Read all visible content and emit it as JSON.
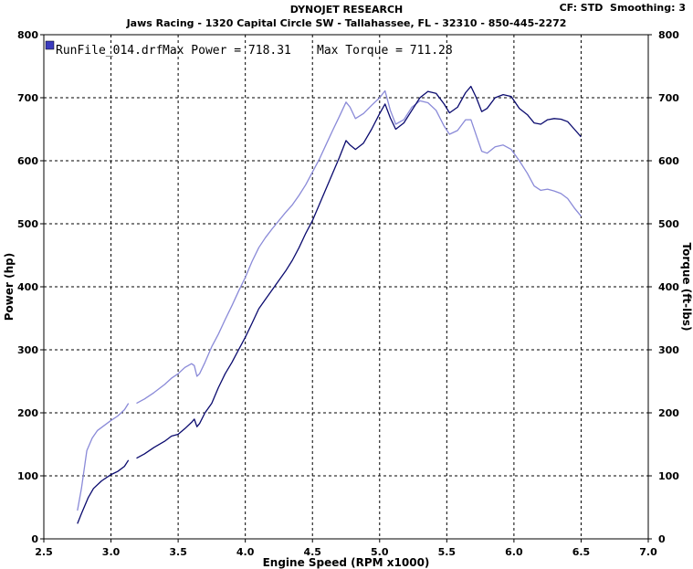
{
  "header": {
    "title": "DYNOJET RESEARCH",
    "subtitle": "Jaws Racing - 1320 Capital Circle SW - Tallahassee, FL - 32310 - 850-445-2272",
    "cf": "CF: STD",
    "smoothing": "Smoothing: 3"
  },
  "chart_data": {
    "type": "line",
    "xlabel": "Engine Speed (RPM x1000)",
    "ylabel": "Power (hp)",
    "y2label": "Torque (ft-lbs)",
    "xlim": [
      2.5,
      7.0
    ],
    "ylim": [
      0,
      800
    ],
    "y2lim": [
      0,
      800
    ],
    "xticks": [
      "2.5",
      "3.0",
      "3.5",
      "4.0",
      "4.5",
      "5.0",
      "5.5",
      "6.0",
      "6.5",
      "7.0"
    ],
    "yticks": [
      "0",
      "100",
      "200",
      "300",
      "400",
      "500",
      "600",
      "700",
      "800"
    ],
    "grid": true,
    "legend": {
      "file": "RunFile_014.drf",
      "max_power": "Max Power = 718.31",
      "max_torque": "Max Torque = 711.28",
      "color": "#3b3bbd",
      "placement": "top-left"
    },
    "series": [
      {
        "role": "power",
        "color": "#0a0a6e",
        "segments": [
          [
            [
              2.75,
              24
            ],
            [
              2.78,
              40
            ],
            [
              2.83,
              65
            ],
            [
              2.87,
              80
            ],
            [
              2.93,
              92
            ],
            [
              3.0,
              102
            ],
            [
              3.05,
              107
            ],
            [
              3.1,
              115
            ],
            [
              3.13,
              125
            ]
          ],
          [
            [
              3.19,
              128
            ],
            [
              3.25,
              135
            ],
            [
              3.32,
              145
            ],
            [
              3.4,
              155
            ],
            [
              3.45,
              163
            ],
            [
              3.5,
              166
            ],
            [
              3.55,
              175
            ],
            [
              3.6,
              185
            ],
            [
              3.62,
              190
            ],
            [
              3.64,
              178
            ],
            [
              3.66,
              183
            ],
            [
              3.7,
              200
            ],
            [
              3.75,
              215
            ],
            [
              3.8,
              240
            ],
            [
              3.85,
              262
            ],
            [
              3.9,
              280
            ],
            [
              3.95,
              300
            ],
            [
              4.0,
              320
            ],
            [
              4.05,
              342
            ],
            [
              4.1,
              365
            ],
            [
              4.15,
              380
            ],
            [
              4.2,
              395
            ],
            [
              4.25,
              410
            ],
            [
              4.3,
              425
            ],
            [
              4.35,
              442
            ],
            [
              4.4,
              462
            ],
            [
              4.45,
              485
            ],
            [
              4.5,
              505
            ],
            [
              4.55,
              530
            ],
            [
              4.6,
              555
            ],
            [
              4.65,
              580
            ],
            [
              4.7,
              605
            ],
            [
              4.75,
              632
            ],
            [
              4.78,
              625
            ],
            [
              4.82,
              618
            ],
            [
              4.88,
              628
            ],
            [
              4.94,
              650
            ],
            [
              5.0,
              675
            ],
            [
              5.04,
              690
            ],
            [
              5.08,
              668
            ],
            [
              5.12,
              650
            ],
            [
              5.18,
              660
            ],
            [
              5.24,
              680
            ],
            [
              5.3,
              700
            ],
            [
              5.36,
              710
            ],
            [
              5.42,
              707
            ],
            [
              5.48,
              690
            ],
            [
              5.52,
              676
            ],
            [
              5.58,
              685
            ],
            [
              5.64,
              708
            ],
            [
              5.68,
              718
            ],
            [
              5.72,
              700
            ],
            [
              5.76,
              678
            ],
            [
              5.8,
              683
            ],
            [
              5.86,
              700
            ],
            [
              5.92,
              705
            ],
            [
              5.98,
              702
            ],
            [
              6.04,
              683
            ],
            [
              6.1,
              673
            ],
            [
              6.15,
              660
            ],
            [
              6.2,
              658
            ],
            [
              6.25,
              665
            ],
            [
              6.3,
              667
            ],
            [
              6.35,
              666
            ],
            [
              6.4,
              662
            ],
            [
              6.45,
              650
            ],
            [
              6.5,
              638
            ]
          ]
        ]
      },
      {
        "role": "torque",
        "color": "#8a8ad8",
        "segments": [
          [
            [
              2.75,
              45
            ],
            [
              2.78,
              80
            ],
            [
              2.82,
              140
            ],
            [
              2.86,
              160
            ],
            [
              2.9,
              172
            ],
            [
              2.95,
              180
            ],
            [
              3.0,
              188
            ],
            [
              3.05,
              195
            ],
            [
              3.1,
              205
            ],
            [
              3.13,
              215
            ]
          ],
          [
            [
              3.19,
              215
            ],
            [
              3.25,
              222
            ],
            [
              3.32,
              232
            ],
            [
              3.4,
              245
            ],
            [
              3.45,
              255
            ],
            [
              3.5,
              262
            ],
            [
              3.55,
              272
            ],
            [
              3.6,
              278
            ],
            [
              3.62,
              275
            ],
            [
              3.64,
              258
            ],
            [
              3.66,
              262
            ],
            [
              3.7,
              280
            ],
            [
              3.75,
              305
            ],
            [
              3.8,
              325
            ],
            [
              3.85,
              348
            ],
            [
              3.9,
              370
            ],
            [
              3.95,
              393
            ],
            [
              4.0,
              415
            ],
            [
              4.05,
              440
            ],
            [
              4.1,
              462
            ],
            [
              4.15,
              478
            ],
            [
              4.2,
              492
            ],
            [
              4.25,
              505
            ],
            [
              4.3,
              518
            ],
            [
              4.35,
              530
            ],
            [
              4.4,
              545
            ],
            [
              4.45,
              562
            ],
            [
              4.5,
              582
            ],
            [
              4.55,
              602
            ],
            [
              4.6,
              625
            ],
            [
              4.65,
              648
            ],
            [
              4.7,
              670
            ],
            [
              4.75,
              693
            ],
            [
              4.78,
              685
            ],
            [
              4.82,
              667
            ],
            [
              4.88,
              675
            ],
            [
              4.94,
              688
            ],
            [
              5.0,
              700
            ],
            [
              5.04,
              711
            ],
            [
              5.08,
              680
            ],
            [
              5.12,
              658
            ],
            [
              5.18,
              665
            ],
            [
              5.24,
              685
            ],
            [
              5.3,
              695
            ],
            [
              5.36,
              692
            ],
            [
              5.42,
              680
            ],
            [
              5.48,
              655
            ],
            [
              5.52,
              642
            ],
            [
              5.58,
              648
            ],
            [
              5.64,
              665
            ],
            [
              5.68,
              665
            ],
            [
              5.72,
              640
            ],
            [
              5.76,
              615
            ],
            [
              5.8,
              612
            ],
            [
              5.86,
              622
            ],
            [
              5.92,
              625
            ],
            [
              5.98,
              618
            ],
            [
              6.04,
              600
            ],
            [
              6.1,
              580
            ],
            [
              6.15,
              560
            ],
            [
              6.2,
              553
            ],
            [
              6.25,
              555
            ],
            [
              6.3,
              552
            ],
            [
              6.35,
              548
            ],
            [
              6.4,
              540
            ],
            [
              6.45,
              525
            ],
            [
              6.5,
              512
            ]
          ]
        ]
      }
    ]
  }
}
